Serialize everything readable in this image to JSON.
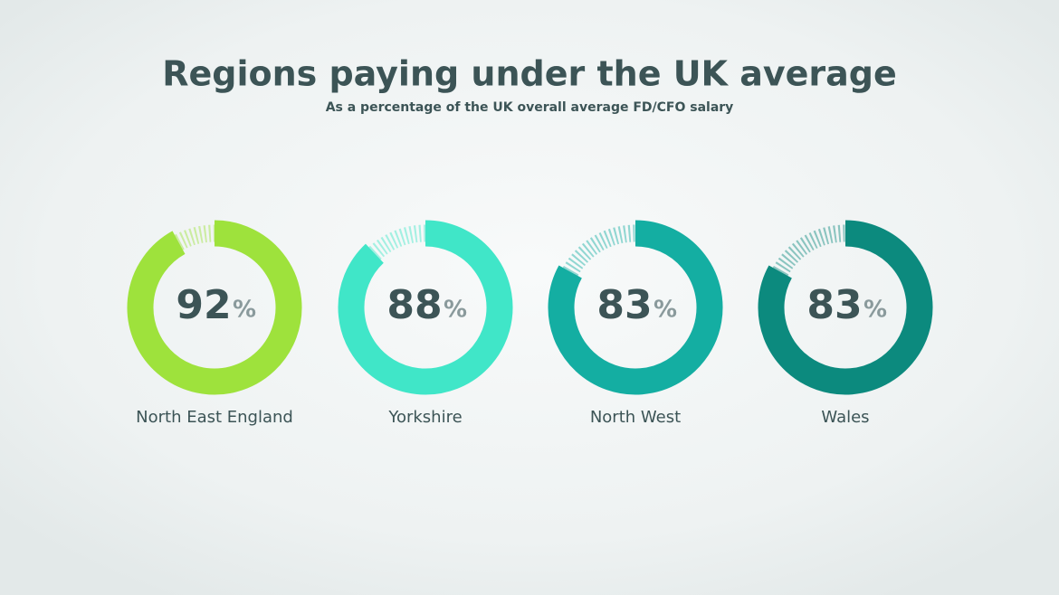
{
  "chart_data": {
    "type": "donut",
    "title": "Regions paying under the UK average",
    "subtitle": "As a percentage of the UK overall average FD/CFO salary",
    "categories": [
      "North East England",
      "Yorkshire",
      "North West",
      "Wales"
    ],
    "values": [
      92,
      88,
      83,
      83
    ],
    "unit": "%",
    "colors": [
      "#9ee23c",
      "#40e6c8",
      "#14aea2",
      "#0c8a7e"
    ]
  }
}
